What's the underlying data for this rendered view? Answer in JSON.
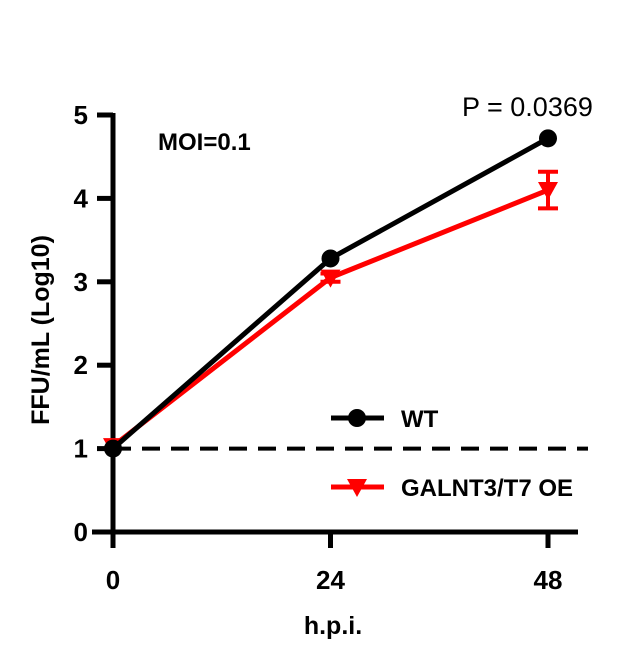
{
  "chart_data": {
    "type": "line",
    "xlabel": "h.p.i.",
    "ylabel": "FFU/mL (Log10)",
    "x": [
      0,
      24,
      48
    ],
    "xticks": [
      "0",
      "24",
      "48"
    ],
    "yticks": [
      "0",
      "1",
      "2",
      "3",
      "4",
      "5"
    ],
    "xlim": [
      0,
      48
    ],
    "ylim": [
      0,
      5
    ],
    "grid": false,
    "legend_position": "bottom-right",
    "reference_line": {
      "y": 1,
      "style": "dashed",
      "color": "#000000"
    },
    "annotations": {
      "moi": "MOI=0.1",
      "pvalue": "P = 0.0369"
    },
    "series": [
      {
        "name": "WT",
        "color": "#000000",
        "marker": "circle",
        "values": [
          1.0,
          3.28,
          4.72
        ],
        "errors": [
          0,
          0,
          0
        ]
      },
      {
        "name": "GALNT3/T7 OE",
        "color": "#ff0000",
        "marker": "triangle-down",
        "values": [
          1.03,
          3.05,
          4.1
        ],
        "errors": [
          0,
          0.05,
          0.22
        ]
      }
    ]
  }
}
